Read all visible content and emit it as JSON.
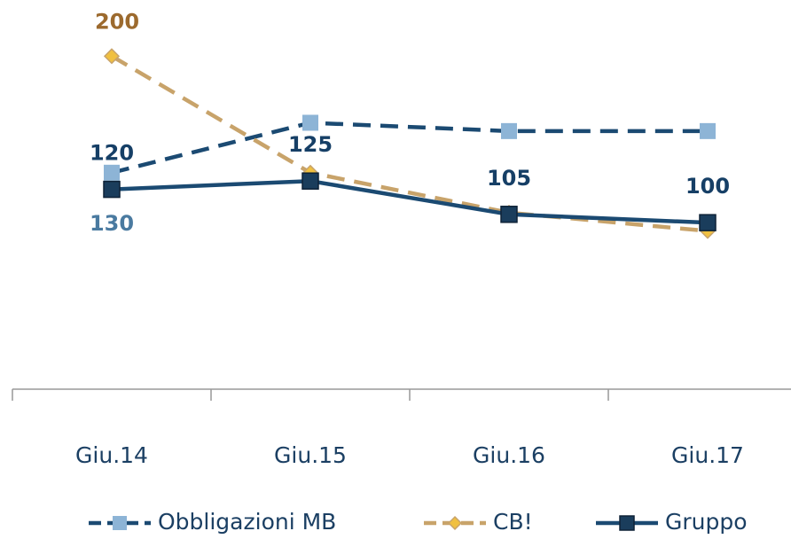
{
  "chart_data": {
    "type": "line",
    "categories": [
      "Giu.14",
      "Giu.15",
      "Giu.16",
      "Giu.17"
    ],
    "ylim": [
      0,
      230
    ],
    "series": [
      {
        "name": "Obbligazioni MB",
        "color": "#1b4a72",
        "marker_color": "#8db4d6",
        "line_style": "dashed",
        "marker": "square",
        "label_color": "#4a7aa0",
        "values": [
          130,
          160,
          155,
          155
        ],
        "value_labels": [
          "130",
          null,
          null,
          null
        ]
      },
      {
        "name": "CB!",
        "color": "#c8a36a",
        "marker_color": "#f0c040",
        "line_style": "dashed",
        "marker": "diamond",
        "label_color": "#9c6a2e",
        "values": [
          200,
          130,
          106,
          95
        ],
        "value_labels": [
          "200",
          null,
          null,
          null
        ]
      },
      {
        "name": "Gruppo",
        "color": "#1b4a72",
        "marker_color": "#1a3d5c",
        "line_style": "solid",
        "marker": "square",
        "label_color": "#163f66",
        "values": [
          120,
          125,
          105,
          100
        ],
        "value_labels": [
          "120",
          "125",
          "105",
          "100"
        ]
      }
    ]
  }
}
